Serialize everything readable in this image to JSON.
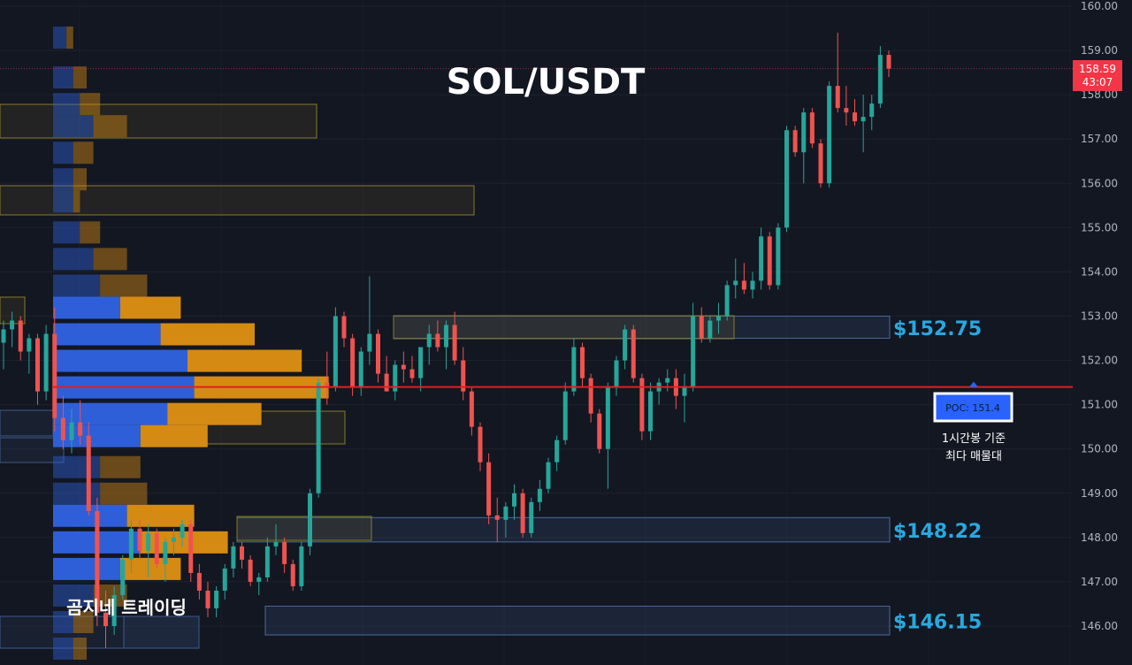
{
  "chart_data": {
    "type": "candlestick",
    "title": "SOL/USDT",
    "watermark": "곰지네 트레이딩",
    "y_axis": {
      "ticks": [
        "146.00",
        "147.00",
        "148.00",
        "149.00",
        "150.00",
        "151.00",
        "152.00",
        "153.00",
        "154.00",
        "155.00",
        "156.00",
        "157.00",
        "158.00",
        "159.00",
        "160.00"
      ],
      "range": [
        145.2,
        160.2
      ]
    },
    "price_box": {
      "price": "158.59",
      "timer": "43:07",
      "value": 158.59
    },
    "poc_line": {
      "value": 151.4,
      "label": "POC: 151.4",
      "note_line1": "1시간봉 기준",
      "note_line2": "최다 매물대"
    },
    "levels": [
      {
        "value": 152.75,
        "label": "$152.75",
        "top": 153.0,
        "bottom": 152.5
      },
      {
        "value": 148.22,
        "label": "$148.22",
        "top": 148.45,
        "bottom": 147.9
      },
      {
        "value": 146.15,
        "label": "$146.15",
        "top": 146.45,
        "bottom": 145.8
      }
    ],
    "volume_profile": [
      {
        "price": 159.3,
        "buy": 0.2,
        "sell": 0.1
      },
      {
        "price": 158.4,
        "buy": 0.3,
        "sell": 0.2
      },
      {
        "price": 157.8,
        "buy": 0.4,
        "sell": 0.3
      },
      {
        "price": 157.3,
        "buy": 0.6,
        "sell": 0.5
      },
      {
        "price": 156.7,
        "buy": 0.3,
        "sell": 0.3
      },
      {
        "price": 156.1,
        "buy": 0.3,
        "sell": 0.2
      },
      {
        "price": 155.6,
        "buy": 0.3,
        "sell": 0.1
      },
      {
        "price": 154.9,
        "buy": 0.4,
        "sell": 0.3
      },
      {
        "price": 154.3,
        "buy": 0.6,
        "sell": 0.5
      },
      {
        "price": 153.7,
        "buy": 0.7,
        "sell": 0.7
      },
      {
        "price": 153.2,
        "buy": 1.0,
        "sell": 0.9
      },
      {
        "price": 152.6,
        "buy": 1.6,
        "sell": 1.4
      },
      {
        "price": 152.0,
        "buy": 2.0,
        "sell": 1.7
      },
      {
        "price": 151.4,
        "buy": 2.1,
        "sell": 2.0
      },
      {
        "price": 150.8,
        "buy": 1.7,
        "sell": 1.4
      },
      {
        "price": 150.3,
        "buy": 1.3,
        "sell": 1.0
      },
      {
        "price": 149.6,
        "buy": 0.7,
        "sell": 0.6
      },
      {
        "price": 149.0,
        "buy": 0.7,
        "sell": 0.7
      },
      {
        "price": 148.5,
        "buy": 1.1,
        "sell": 1.0
      },
      {
        "price": 147.9,
        "buy": 1.3,
        "sell": 1.3
      },
      {
        "price": 147.3,
        "buy": 1.0,
        "sell": 0.9
      },
      {
        "price": 146.7,
        "buy": 0.6,
        "sell": 0.5
      },
      {
        "price": 146.1,
        "buy": 0.3,
        "sell": 0.3
      },
      {
        "price": 145.5,
        "buy": 0.3,
        "sell": 0.2
      }
    ],
    "candles": [
      [
        152.4,
        152.9,
        151.8,
        152.7
      ],
      [
        152.7,
        153.1,
        152.3,
        152.9
      ],
      [
        152.9,
        153.0,
        152.0,
        152.2
      ],
      [
        152.2,
        152.6,
        151.7,
        152.5
      ],
      [
        152.5,
        152.6,
        151.0,
        151.3
      ],
      [
        151.3,
        152.8,
        151.1,
        152.6
      ],
      [
        152.6,
        153.2,
        150.4,
        150.7
      ],
      [
        150.7,
        151.2,
        150.0,
        150.2
      ],
      [
        150.2,
        150.9,
        149.9,
        150.6
      ],
      [
        150.6,
        151.1,
        150.1,
        150.3
      ],
      [
        150.3,
        150.6,
        148.5,
        148.6
      ],
      [
        148.6,
        148.9,
        146.0,
        146.3
      ],
      [
        146.3,
        146.8,
        145.5,
        146.0
      ],
      [
        146.0,
        146.9,
        145.8,
        146.7
      ],
      [
        146.7,
        147.6,
        146.6,
        147.5
      ],
      [
        147.5,
        148.4,
        147.2,
        148.2
      ],
      [
        148.2,
        148.4,
        147.5,
        147.7
      ],
      [
        147.7,
        148.3,
        147.1,
        148.1
      ],
      [
        148.1,
        148.2,
        147.3,
        147.4
      ],
      [
        147.4,
        148.0,
        147.0,
        147.9
      ],
      [
        147.9,
        148.2,
        147.6,
        148.0
      ],
      [
        148.0,
        148.4,
        147.8,
        148.3
      ],
      [
        148.3,
        148.4,
        147.0,
        147.2
      ],
      [
        147.2,
        147.4,
        146.6,
        146.8
      ],
      [
        146.8,
        147.0,
        146.2,
        146.4
      ],
      [
        146.4,
        146.9,
        146.2,
        146.8
      ],
      [
        146.8,
        147.4,
        146.6,
        147.3
      ],
      [
        147.3,
        147.9,
        147.1,
        147.8
      ],
      [
        147.8,
        147.9,
        147.3,
        147.5
      ],
      [
        147.5,
        147.6,
        146.9,
        147.0
      ],
      [
        147.0,
        147.2,
        146.7,
        147.1
      ],
      [
        147.1,
        148.0,
        147.0,
        147.8
      ],
      [
        147.8,
        148.3,
        147.6,
        147.9
      ],
      [
        147.9,
        148.0,
        147.2,
        147.4
      ],
      [
        147.4,
        147.5,
        146.8,
        146.9
      ],
      [
        146.9,
        147.9,
        146.8,
        147.8
      ],
      [
        147.8,
        149.1,
        147.6,
        149.0
      ],
      [
        149.0,
        151.6,
        148.9,
        151.5
      ],
      [
        151.5,
        152.2,
        151.0,
        151.4
      ],
      [
        151.4,
        153.2,
        151.3,
        153.0
      ],
      [
        153.0,
        153.1,
        152.3,
        152.5
      ],
      [
        152.5,
        152.6,
        151.2,
        151.4
      ],
      [
        151.4,
        152.3,
        151.2,
        152.2
      ],
      [
        152.2,
        153.9,
        151.9,
        152.6
      ],
      [
        152.6,
        152.7,
        151.5,
        151.7
      ],
      [
        151.7,
        152.1,
        151.3,
        151.3
      ],
      [
        151.3,
        152.0,
        151.1,
        151.9
      ],
      [
        151.9,
        152.2,
        151.5,
        151.8
      ],
      [
        151.8,
        152.1,
        151.5,
        151.6
      ],
      [
        151.6,
        152.2,
        151.3,
        152.3
      ],
      [
        152.3,
        152.8,
        151.9,
        152.6
      ],
      [
        152.6,
        152.9,
        152.2,
        152.3
      ],
      [
        152.3,
        152.9,
        151.8,
        152.8
      ],
      [
        152.8,
        153.1,
        151.9,
        152.0
      ],
      [
        152.0,
        152.3,
        151.1,
        151.3
      ],
      [
        151.3,
        151.4,
        150.3,
        150.5
      ],
      [
        150.5,
        150.6,
        149.5,
        149.7
      ],
      [
        149.7,
        149.9,
        148.3,
        148.5
      ],
      [
        148.5,
        148.9,
        147.9,
        148.4
      ],
      [
        148.4,
        148.8,
        148.0,
        148.7
      ],
      [
        148.7,
        149.2,
        148.4,
        149.0
      ],
      [
        149.0,
        149.1,
        148.0,
        148.1
      ],
      [
        148.1,
        148.9,
        148.0,
        148.8
      ],
      [
        148.8,
        149.3,
        148.6,
        149.1
      ],
      [
        149.1,
        149.8,
        149.0,
        149.7
      ],
      [
        149.7,
        150.3,
        149.5,
        150.2
      ],
      [
        150.2,
        151.5,
        150.1,
        151.3
      ],
      [
        151.3,
        152.5,
        151.2,
        152.3
      ],
      [
        152.3,
        152.4,
        151.4,
        151.6
      ],
      [
        151.6,
        151.7,
        150.6,
        150.8
      ],
      [
        150.8,
        150.9,
        149.9,
        150.0
      ],
      [
        150.0,
        151.5,
        149.1,
        151.4
      ],
      [
        151.4,
        152.1,
        151.2,
        152.0
      ],
      [
        152.0,
        152.8,
        151.8,
        152.7
      ],
      [
        152.7,
        152.8,
        151.5,
        151.6
      ],
      [
        151.6,
        151.7,
        150.2,
        150.4
      ],
      [
        150.4,
        151.5,
        150.2,
        151.3
      ],
      [
        151.3,
        151.6,
        151.0,
        151.5
      ],
      [
        151.5,
        151.8,
        151.3,
        151.6
      ],
      [
        151.6,
        151.8,
        150.9,
        151.2
      ],
      [
        151.2,
        151.7,
        150.6,
        151.4
      ],
      [
        151.4,
        153.3,
        151.3,
        153.0
      ],
      [
        153.0,
        153.2,
        152.4,
        152.5
      ],
      [
        152.5,
        153.0,
        152.4,
        152.9
      ],
      [
        152.9,
        153.3,
        152.6,
        153.0
      ],
      [
        153.0,
        153.8,
        152.9,
        153.7
      ],
      [
        153.7,
        154.3,
        153.4,
        153.8
      ],
      [
        153.8,
        154.2,
        153.5,
        153.6
      ],
      [
        153.6,
        154.0,
        153.4,
        153.8
      ],
      [
        153.8,
        155.0,
        153.6,
        154.8
      ],
      [
        154.8,
        154.9,
        153.6,
        153.7
      ],
      [
        153.7,
        155.1,
        153.6,
        155.0
      ],
      [
        155.0,
        157.3,
        154.9,
        157.2
      ],
      [
        157.2,
        157.3,
        156.6,
        156.7
      ],
      [
        156.7,
        157.7,
        156.0,
        157.6
      ],
      [
        157.6,
        157.7,
        156.8,
        156.9
      ],
      [
        156.9,
        157.0,
        155.9,
        156.0
      ],
      [
        156.0,
        158.3,
        155.9,
        158.2
      ],
      [
        158.2,
        159.4,
        157.6,
        157.7
      ],
      [
        157.7,
        158.2,
        157.3,
        157.6
      ],
      [
        157.6,
        157.9,
        157.3,
        157.4
      ],
      [
        157.4,
        158.0,
        156.7,
        157.5
      ],
      [
        157.5,
        158.0,
        157.2,
        157.8
      ],
      [
        157.8,
        159.1,
        157.7,
        158.9
      ],
      [
        158.9,
        159.0,
        158.4,
        158.59
      ]
    ]
  }
}
